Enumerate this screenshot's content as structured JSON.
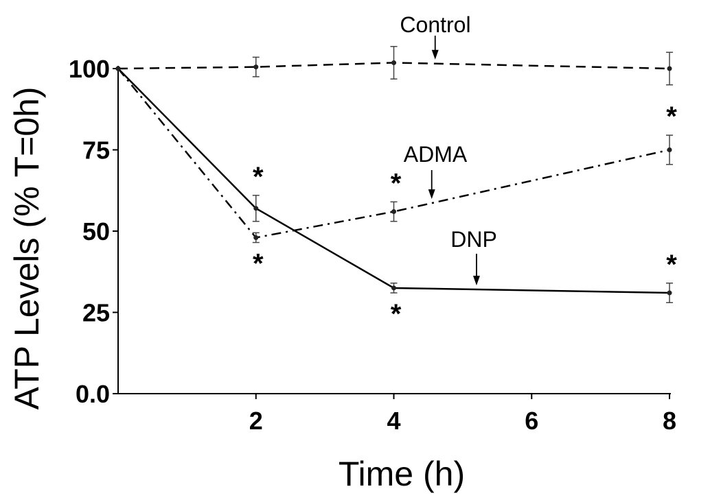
{
  "chart_data": {
    "type": "line",
    "xlabel": "Time (h)",
    "ylabel": "ATP Levels (% T=0h)",
    "x_ticks": [
      "2",
      "4",
      "6",
      "8"
    ],
    "y_ticks": [
      "0.0",
      "25",
      "50",
      "75",
      "100"
    ],
    "xlim": [
      0,
      8
    ],
    "ylim": [
      0,
      100
    ],
    "grid": false,
    "series": [
      {
        "name": "Control",
        "style": "dashed",
        "x": [
          0,
          2,
          4,
          8
        ],
        "y": [
          100,
          100.5,
          101.8,
          100
        ],
        "err": [
          0,
          3,
          5,
          5
        ],
        "significant": [
          false,
          false,
          false,
          false
        ]
      },
      {
        "name": "ADMA",
        "style": "dash-dot",
        "x": [
          0,
          2,
          4,
          8
        ],
        "y": [
          100,
          48,
          56,
          75
        ],
        "err": [
          0,
          1.5,
          3,
          4.5
        ],
        "significant": [
          false,
          true,
          true,
          true
        ]
      },
      {
        "name": "DNP",
        "style": "solid",
        "x": [
          0,
          2,
          4,
          8
        ],
        "y": [
          100,
          57,
          32.5,
          31
        ],
        "err": [
          0,
          4,
          1.5,
          3
        ],
        "significant": [
          false,
          true,
          true,
          true
        ]
      }
    ],
    "annotations": [
      {
        "text": "Control",
        "series": "Control",
        "at_x": 4.6
      },
      {
        "text": "ADMA",
        "series": "ADMA",
        "at_x": 4.55
      },
      {
        "text": "DNP",
        "series": "DNP",
        "at_x": 5.2
      }
    ],
    "significance_marker": "*"
  }
}
